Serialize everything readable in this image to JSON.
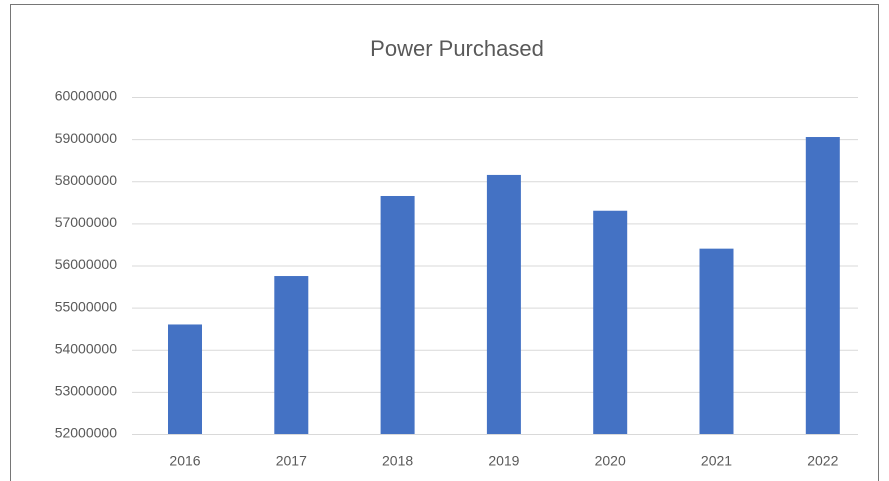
{
  "chart_data": {
    "type": "bar",
    "title": "Power Purchased",
    "categories": [
      "2016",
      "2017",
      "2018",
      "2019",
      "2020",
      "2021",
      "2022"
    ],
    "values": [
      54600000,
      55750000,
      57650000,
      58150000,
      57300000,
      56400000,
      59050000
    ],
    "color": "#4472c4",
    "ylim": [
      52000000,
      60000000
    ],
    "yticks": [
      52000000,
      53000000,
      54000000,
      55000000,
      56000000,
      57000000,
      58000000,
      59000000,
      60000000
    ],
    "grid": true
  }
}
